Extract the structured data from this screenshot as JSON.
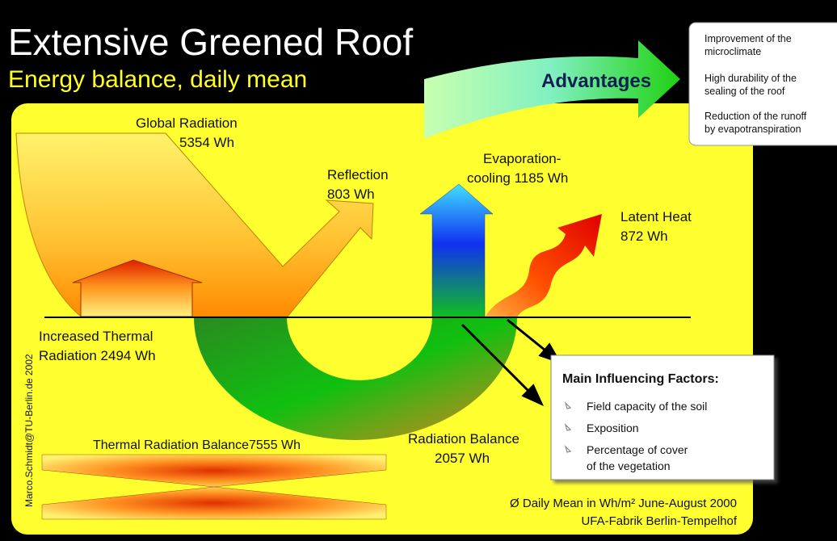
{
  "header": {
    "title": "Extensive Greened Roof",
    "subtitle": "Energy balance, daily mean"
  },
  "advantages": {
    "label": "Advantages",
    "items": [
      [
        "Improvement of the",
        "microclimate"
      ],
      [
        "High durability of the",
        "sealing of the roof"
      ],
      [
        "Reduction of the runoff",
        "by evapotranspiration"
      ]
    ]
  },
  "flows": {
    "global_radiation": [
      "Global Radiation",
      "5354 Wh"
    ],
    "reflection": [
      "Reflection",
      "803 Wh"
    ],
    "evaporation_cooling": [
      "Evaporation-",
      "cooling 1185 Wh"
    ],
    "latent_heat": [
      "Latent Heat",
      "872 Wh"
    ],
    "increased_thermal_radiation": [
      "Increased Thermal",
      "Radiation 2494 Wh"
    ],
    "thermal_radiation_balance": "Thermal Radiation Balance7555 Wh",
    "radiation_balance": [
      "Radiation Balance",
      "2057 Wh"
    ]
  },
  "factors": {
    "title": "Main Influencing Factors:",
    "items": [
      [
        "Field capacity of the soil"
      ],
      [
        "Exposition"
      ],
      [
        "Percentage of cover",
        "of the vegetation"
      ]
    ]
  },
  "credit": "Marco.Schmidt@TU-Berlin.de  2002",
  "footer": [
    "Ø Daily Mean in Wh/m² June-August 2000",
    "UFA-Fabrik Berlin-Tempelhof"
  ]
}
